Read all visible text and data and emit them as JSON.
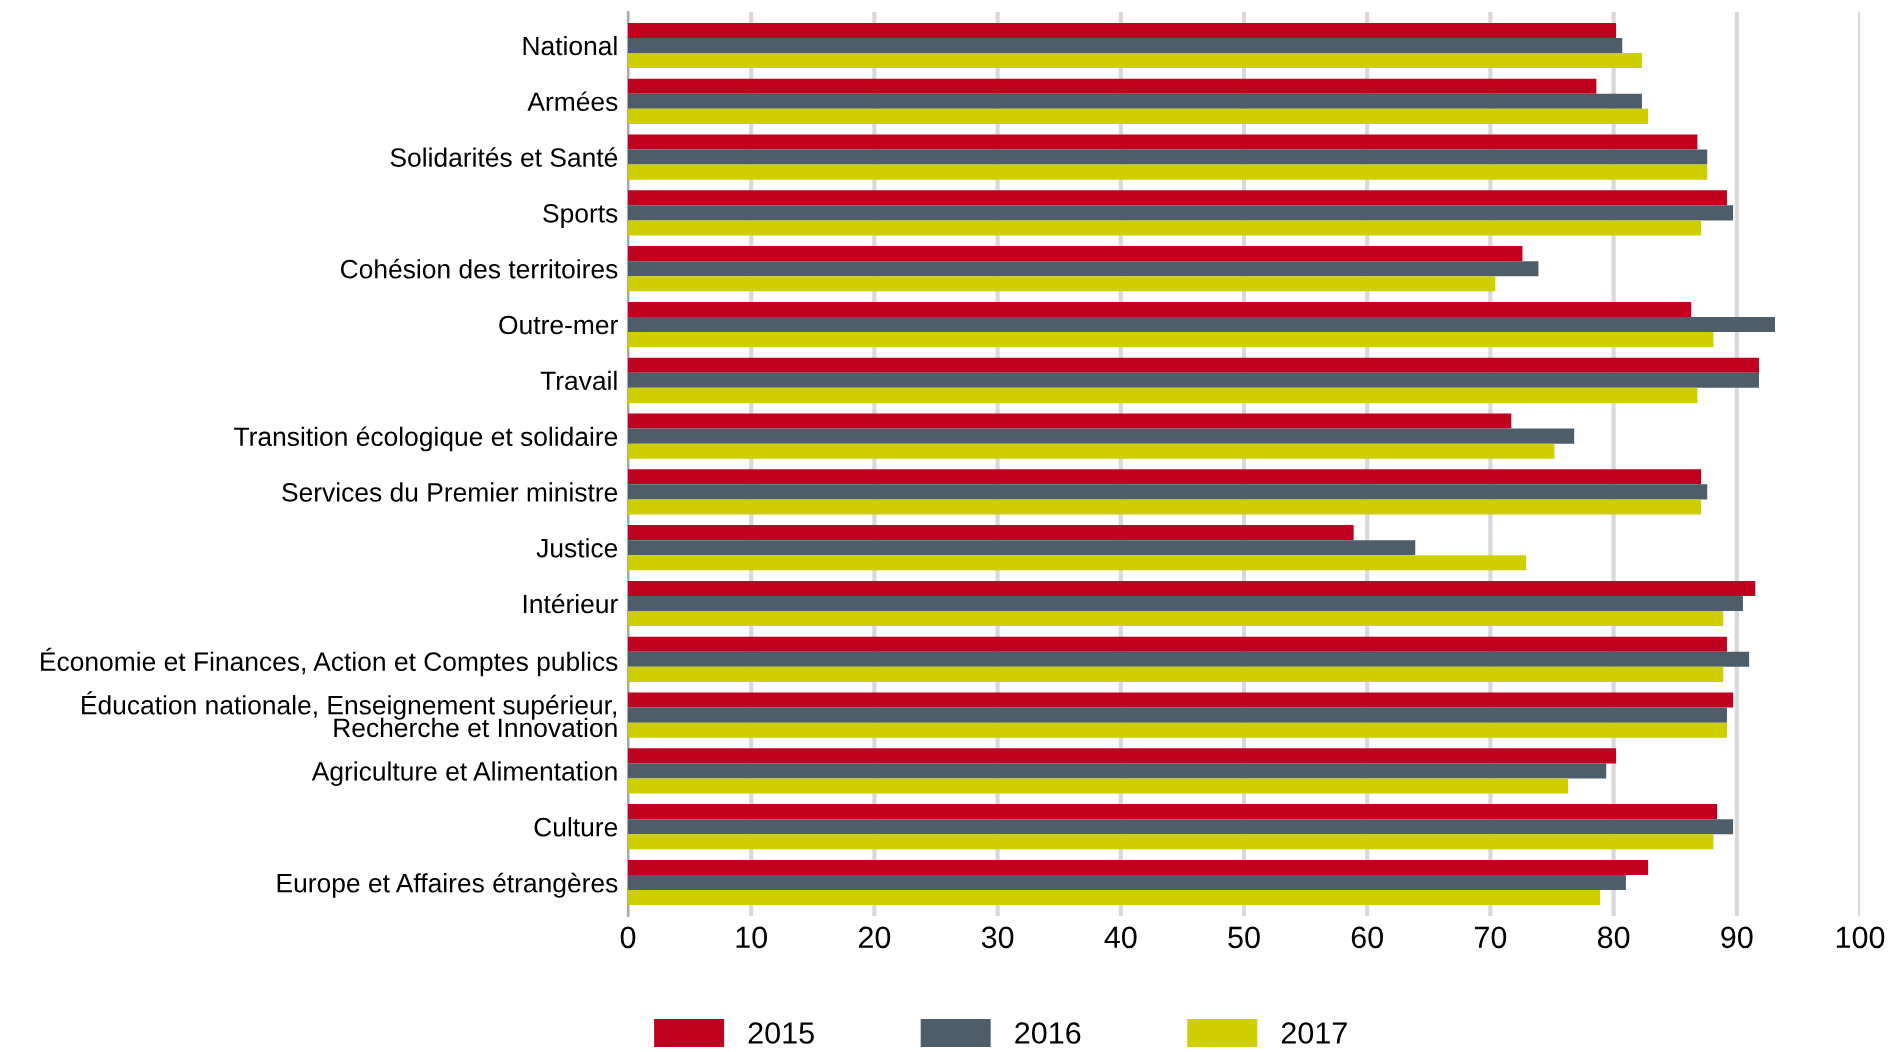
{
  "chart_data": {
    "type": "bar",
    "orientation": "horizontal",
    "categories": [
      "National",
      "Armées",
      "Solidarités et Santé",
      "Sports",
      "Cohésion des territoires",
      "Outre-mer",
      "Travail",
      "Transition écologique et solidaire",
      "Services du Premier ministre",
      "Justice",
      "Intérieur",
      "Économie et Finances, Action et Comptes publics",
      "Éducation nationale, Enseignement supérieur,\nRecherche et Innovation",
      "Agriculture et Alimentation",
      "Culture",
      "Europe et Affaires étrangères"
    ],
    "series": [
      {
        "name": "2015",
        "color": "#c0001f",
        "values": [
          80.2,
          78.6,
          86.8,
          89.2,
          72.6,
          86.3,
          91.8,
          71.7,
          87.1,
          58.9,
          91.5,
          89.2,
          89.7,
          80.2,
          88.4,
          82.8
        ]
      },
      {
        "name": "2016",
        "color": "#4d5d6a",
        "values": [
          80.7,
          82.3,
          87.6,
          89.7,
          73.9,
          93.1,
          91.8,
          76.8,
          87.6,
          63.9,
          90.5,
          91.0,
          89.2,
          79.4,
          89.7,
          81.0
        ]
      },
      {
        "name": "2017",
        "color": "#cfcf00",
        "values": [
          82.3,
          82.8,
          87.6,
          87.1,
          70.4,
          88.1,
          86.8,
          75.2,
          87.1,
          72.9,
          88.9,
          88.9,
          89.2,
          76.3,
          88.1,
          78.9
        ]
      }
    ],
    "xlim": [
      0,
      100
    ],
    "xticks": [
      0,
      10,
      20,
      30,
      40,
      50,
      60,
      70,
      80,
      90,
      100
    ],
    "grid": "x",
    "legend": "bottom left"
  }
}
